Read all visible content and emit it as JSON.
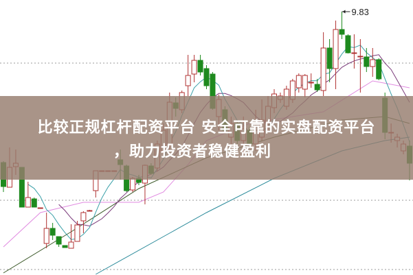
{
  "banner": {
    "line1": "比较正规杠杆配资平台 安全可靠的实盘配资平台",
    "line2": "，助力投资者稳健盈利"
  },
  "chart_data": {
    "type": "candlestick",
    "ylim": [
      6.0,
      10.0
    ],
    "grid": "dotted horizontal",
    "gridlines": [
      9.08,
      7.08,
      6.07
    ],
    "annotations": [
      {
        "label": "9.83",
        "candle": 55,
        "value": 9.83
      }
    ],
    "colors": {
      "up": "#b03030",
      "down": "#1e8a1e",
      "ma5": "#3aa0a8",
      "ma10": "#7a3a7a",
      "ma_pink": "#e08ae0",
      "ma_olive": "#3d5a2a",
      "ma_teal": "#2a8a9a",
      "grid": "#999999"
    },
    "candles": [
      [
        7.63,
        7.65,
        7.2,
        7.28
      ],
      [
        7.27,
        7.85,
        7.27,
        7.56
      ],
      [
        7.57,
        7.82,
        7.45,
        7.62
      ],
      [
        7.56,
        7.56,
        6.98,
        6.98
      ],
      [
        6.98,
        7.35,
        6.98,
        7.12
      ],
      [
        7.1,
        7.12,
        6.98,
        6.98
      ],
      [
        6.97,
        6.97,
        6.96,
        6.97
      ],
      [
        6.45,
        6.9,
        6.38,
        6.67
      ],
      [
        6.67,
        6.75,
        6.5,
        6.57
      ],
      [
        6.55,
        6.55,
        6.4,
        6.44
      ],
      [
        6.42,
        6.42,
        6.39,
        6.39
      ],
      [
        6.38,
        6.73,
        6.38,
        6.47
      ],
      [
        6.48,
        6.78,
        6.48,
        6.72
      ],
      [
        6.78,
        6.92,
        6.6,
        6.9
      ],
      [
        6.93,
        6.94,
        6.92,
        6.93
      ],
      [
        7.22,
        7.51,
        7.12,
        7.51
      ],
      [
        7.51,
        7.51,
        7.51,
        7.51
      ],
      [
        7.51,
        7.51,
        7.51,
        7.51
      ],
      [
        7.51,
        7.51,
        7.51,
        7.51
      ],
      [
        7.67,
        7.82,
        7.38,
        7.6
      ],
      [
        7.58,
        7.6,
        7.2,
        7.22
      ],
      [
        7.23,
        7.42,
        7.2,
        7.4
      ],
      [
        7.4,
        7.45,
        7.3,
        7.34
      ],
      [
        7.33,
        7.6,
        7.02,
        7.59
      ],
      [
        7.58,
        7.62,
        7.45,
        7.47
      ],
      [
        7.55,
        7.95,
        7.5,
        7.9
      ],
      [
        7.8,
        8.2,
        7.75,
        8.1
      ],
      [
        7.9,
        8.65,
        7.8,
        8.51
      ],
      [
        8.5,
        8.58,
        8.3,
        8.42
      ],
      [
        8.4,
        8.68,
        8.35,
        8.65
      ],
      [
        8.75,
        9.2,
        8.6,
        8.9
      ],
      [
        8.92,
        9.2,
        8.8,
        9.12
      ],
      [
        9.12,
        9.2,
        8.9,
        8.95
      ],
      [
        9.0,
        9.05,
        8.7,
        8.75
      ],
      [
        8.92,
        8.95,
        8.4,
        8.42
      ],
      [
        8.3,
        8.62,
        8.1,
        8.55
      ],
      [
        8.4,
        8.45,
        8.05,
        8.1
      ],
      [
        8.0,
        8.3,
        7.85,
        8.2
      ],
      [
        8.2,
        8.25,
        7.9,
        7.95
      ],
      [
        7.95,
        8.3,
        7.7,
        8.12
      ],
      [
        8.1,
        8.15,
        7.85,
        7.9
      ],
      [
        7.9,
        8.4,
        7.8,
        8.1
      ],
      [
        8.0,
        8.55,
        7.95,
        8.25
      ],
      [
        8.2,
        8.6,
        8.1,
        8.45
      ],
      [
        8.43,
        8.7,
        8.35,
        8.63
      ],
      [
        8.55,
        8.65,
        8.5,
        8.6
      ],
      [
        8.45,
        8.75,
        8.4,
        8.7
      ],
      [
        8.55,
        8.85,
        8.5,
        8.82
      ],
      [
        8.72,
        8.93,
        8.65,
        8.9
      ],
      [
        8.7,
        8.92,
        8.58,
        8.9
      ],
      [
        8.8,
        8.93,
        8.72,
        8.8
      ],
      [
        8.77,
        8.85,
        8.66,
        8.69
      ],
      [
        8.68,
        9.53,
        8.6,
        9.3
      ],
      [
        9.3,
        9.43,
        8.8,
        9.0
      ],
      [
        9.0,
        9.7,
        8.7,
        9.57
      ],
      [
        9.57,
        9.83,
        9.43,
        9.5
      ],
      [
        9.48,
        9.5,
        9.22,
        9.23
      ],
      [
        9.22,
        9.5,
        9.0,
        9.23
      ],
      [
        9.17,
        9.43,
        8.65,
        9.18
      ],
      [
        9.17,
        9.3,
        8.95,
        9.03
      ],
      [
        9.03,
        9.3,
        8.88,
        9.13
      ],
      [
        9.13,
        9.15,
        8.83,
        8.85
      ],
      [
        8.57,
        8.65,
        7.97,
        8.07
      ],
      [
        8.07,
        8.2,
        7.92,
        8.07
      ],
      [
        7.95,
        8.05,
        7.85,
        8.0
      ],
      [
        7.8,
        7.95,
        7.75,
        7.9
      ],
      [
        7.87,
        7.95,
        7.37,
        7.62
      ]
    ],
    "ma_series": [
      {
        "key": "ma_pink",
        "points": [
          [
            0,
            6.4
          ],
          [
            6,
            6.9
          ],
          [
            13,
            7.05
          ],
          [
            22,
            7.05
          ],
          [
            26,
            7.2
          ],
          [
            30,
            7.6
          ],
          [
            33,
            7.95
          ],
          [
            40,
            8.2
          ],
          [
            52,
            8.37
          ],
          [
            60,
            8.82
          ],
          [
            66,
            8.72
          ]
        ]
      },
      {
        "key": "ma_olive",
        "points": [
          [
            0,
            6.02
          ],
          [
            11,
            6.62
          ],
          [
            22,
            7.25
          ],
          [
            33,
            7.7
          ],
          [
            44,
            8.0
          ],
          [
            55,
            8.25
          ],
          [
            62,
            8.3
          ],
          [
            66,
            8.2
          ]
        ]
      },
      {
        "key": "ma_teal",
        "points": [
          [
            15,
            6.0
          ],
          [
            27,
            6.6
          ],
          [
            33,
            6.9
          ],
          [
            44,
            7.4
          ],
          [
            55,
            7.8
          ],
          [
            62,
            7.95
          ],
          [
            66,
            8.0
          ]
        ]
      }
    ]
  }
}
